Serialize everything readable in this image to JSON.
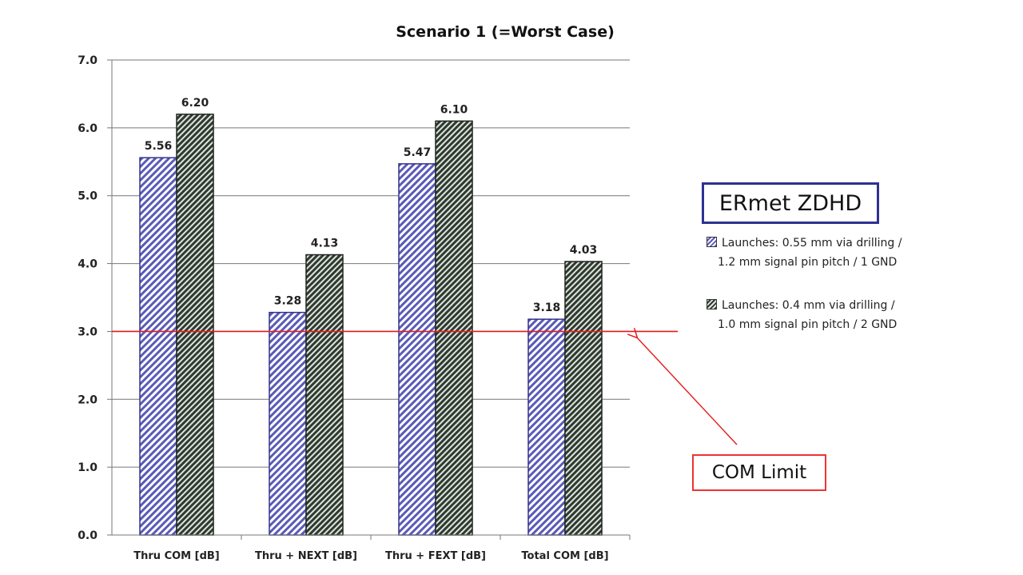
{
  "chart_data": {
    "type": "bar",
    "title": "Scenario 1 (=Worst Case)",
    "categories": [
      "Thru COM [dB]",
      "Thru + NEXT [dB]",
      "Thru + FEXT [dB]",
      "Total COM [dB]"
    ],
    "series": [
      {
        "name": "Launches: 0.55 mm via drilling / 1.2 mm signal pin pitch / 1 GND",
        "values": [
          5.56,
          3.28,
          5.47,
          3.18
        ],
        "color": "#5a5ab8",
        "pattern": "blue-diagonal-hatch"
      },
      {
        "name": "Launches: 0.4 mm via drilling / 1.0 mm signal pin pitch / 2 GND",
        "values": [
          6.2,
          4.13,
          6.1,
          4.03
        ],
        "color": "#3c4a3c",
        "pattern": "dark-diagonal-hatch"
      }
    ],
    "data_labels": [
      [
        "5.56",
        "3.28",
        "5.47",
        "3.18"
      ],
      [
        "6.20",
        "4.13",
        "6.10",
        "4.03"
      ]
    ],
    "ylim": [
      0,
      7
    ],
    "yticks": [
      "0.0",
      "1.0",
      "2.0",
      "3.0",
      "4.0",
      "5.0",
      "6.0",
      "7.0"
    ],
    "grid": true,
    "reference_line": {
      "value": 3.0,
      "color": "#e31b1b",
      "label": "COM Limit"
    },
    "legend_placement": "right"
  },
  "legend": {
    "heading": "ERmet ZDHD",
    "items": [
      {
        "line1": "Launches: 0.55 mm via drilling /",
        "line2": "1.2 mm signal pin pitch / 1 GND"
      },
      {
        "line1": "Launches: 0.4 mm via drilling /",
        "line2": "1.0 mm signal pin pitch / 2 GND"
      }
    ]
  },
  "annotation": {
    "label": "COM Limit"
  }
}
